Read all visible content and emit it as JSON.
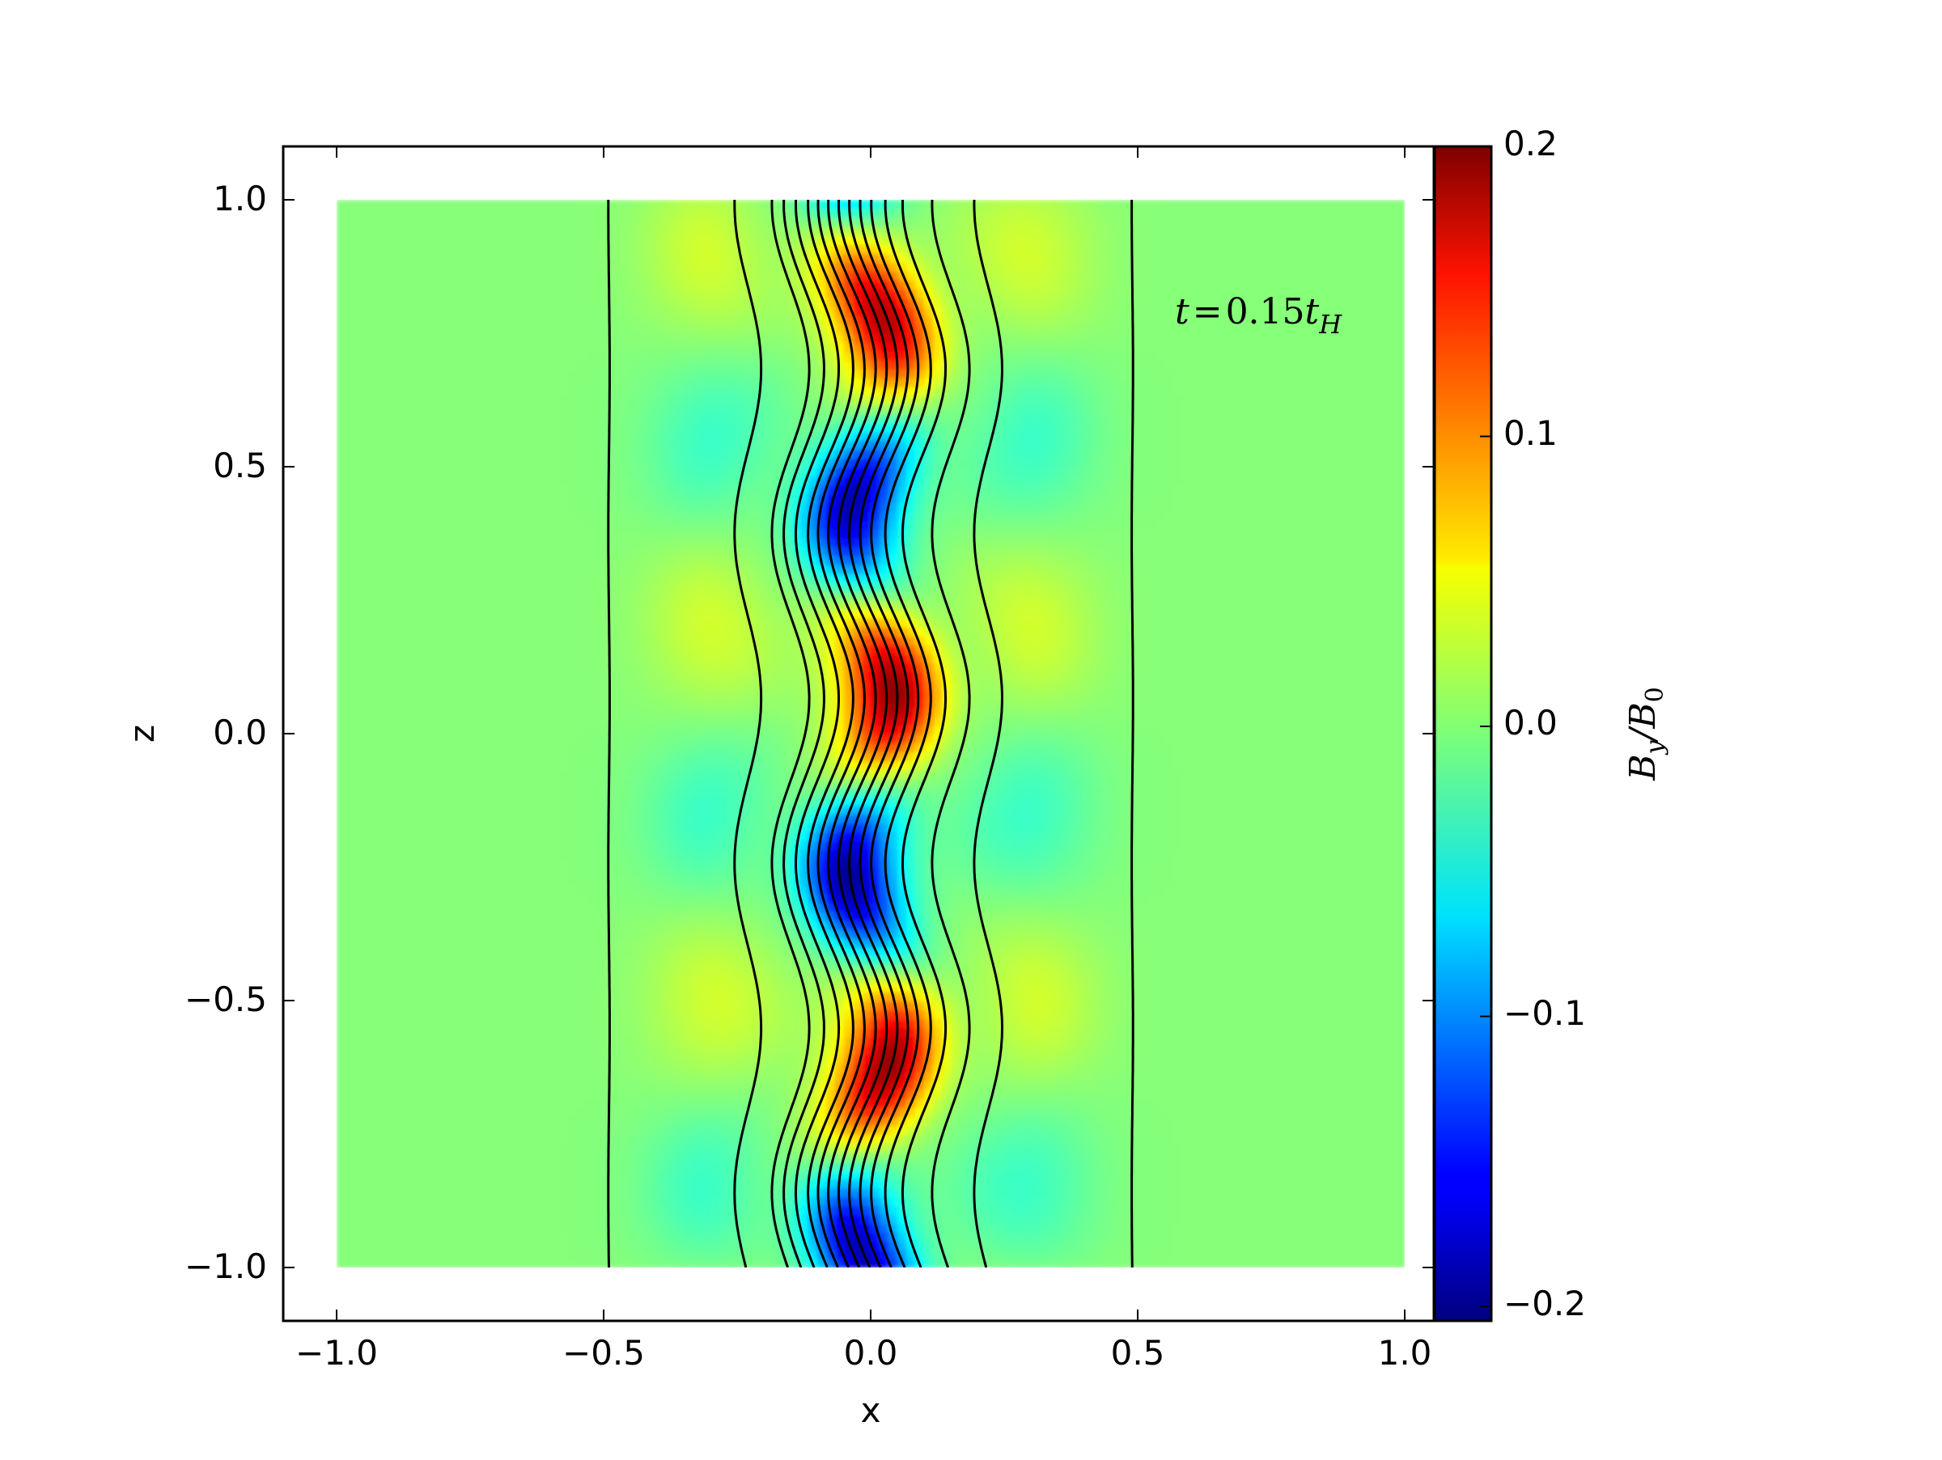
{
  "chart_data": {
    "type": "heatmap",
    "xlabel": "x",
    "ylabel": "z",
    "xlim": [
      -1.1,
      1.1
    ],
    "ylim": [
      -1.1,
      1.1
    ],
    "data_extent": {
      "x": [
        -1.0,
        1.0
      ],
      "z": [
        -1.0,
        1.0
      ]
    },
    "x_ticks": [
      -1.0,
      -0.5,
      0.0,
      0.5,
      1.0
    ],
    "x_tick_labels": [
      "−1.0",
      "−0.5",
      "0.0",
      "0.5",
      "1.0"
    ],
    "y_ticks": [
      -1.0,
      -0.5,
      0.0,
      0.5,
      1.0
    ],
    "y_tick_labels": [
      "−1.0",
      "−0.5",
      "0.0",
      "0.5",
      "1.0"
    ],
    "colormap": "jet",
    "colorbar": {
      "label": "B_y/B_0",
      "label_main": "B",
      "label_sub1": "y",
      "label_slash": "/B",
      "label_sub2": "0",
      "range": [
        -0.205,
        0.2
      ],
      "ticks": [
        -0.2,
        -0.1,
        0.0,
        0.1,
        0.2
      ],
      "tick_labels": [
        "−0.2",
        "−0.1",
        "0.0",
        "0.1",
        "0.2"
      ]
    },
    "annotation": {
      "text": "t = 0.15 t_H",
      "t": "t",
      "eq": "=",
      "num": "0.15",
      "tvar": "t",
      "sub": "H",
      "position": "top-right"
    },
    "field_lines_x": [
      -0.49,
      -0.23,
      -0.15,
      -0.125,
      -0.1,
      -0.075,
      -0.055,
      -0.035,
      -0.015,
      0.005,
      0.025,
      0.045,
      0.07,
      0.1,
      0.15,
      0.22,
      0.49
    ],
    "field_line_wave": {
      "wavenumber_per_unit_z": 1.62,
      "max_amplitude": 0.045,
      "halfwidth": 0.25
    },
    "By_features": [
      {
        "x": 0.0,
        "z": 0.78,
        "value": 0.2
      },
      {
        "x": 0.0,
        "z": 0.42,
        "value": -0.18
      },
      {
        "x": 0.0,
        "z": 0.1,
        "value": 0.13
      },
      {
        "x": 0.0,
        "z": -0.25,
        "value": -0.16
      },
      {
        "x": 0.0,
        "z": -0.53,
        "value": 0.18
      },
      {
        "x": 0.0,
        "z": -0.88,
        "value": -0.21
      }
    ],
    "grid": false,
    "colors": {
      "frame": "#000000",
      "contour": "#000000",
      "background": "#ffffff"
    }
  }
}
